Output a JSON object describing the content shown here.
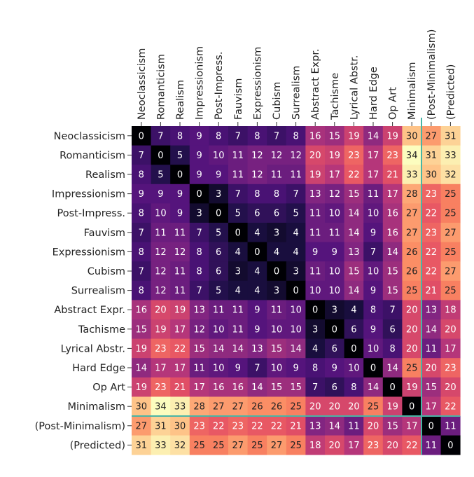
{
  "chart_data": {
    "type": "heatmap",
    "title": "",
    "xlabel": "",
    "ylabel": "",
    "categories": [
      "Neoclassicism",
      "Romanticism",
      "Realism",
      "Impressionism",
      "Post-Impress.",
      "Fauvism",
      "Expressionism",
      "Cubism",
      "Surrealism",
      "Abstract Expr.",
      "Tachisme",
      "Lyrical Abstr.",
      "Hard Edge",
      "Op Art",
      "Minimalism",
      "(Post-Minimalism)",
      "(Predicted)"
    ],
    "values": [
      [
        0,
        7,
        8,
        9,
        8,
        7,
        8,
        7,
        8,
        16,
        15,
        19,
        14,
        19,
        30,
        27,
        31
      ],
      [
        7,
        0,
        5,
        9,
        10,
        11,
        12,
        12,
        12,
        20,
        19,
        23,
        17,
        23,
        34,
        31,
        33
      ],
      [
        8,
        5,
        0,
        9,
        9,
        11,
        12,
        11,
        11,
        19,
        17,
        22,
        17,
        21,
        33,
        30,
        32
      ],
      [
        9,
        9,
        9,
        0,
        3,
        7,
        8,
        8,
        7,
        13,
        12,
        15,
        11,
        17,
        28,
        23,
        25
      ],
      [
        8,
        10,
        9,
        3,
        0,
        5,
        6,
        6,
        5,
        11,
        10,
        14,
        10,
        16,
        27,
        22,
        25
      ],
      [
        7,
        11,
        11,
        7,
        5,
        0,
        4,
        3,
        4,
        11,
        11,
        14,
        9,
        16,
        27,
        23,
        27
      ],
      [
        8,
        12,
        12,
        8,
        6,
        4,
        0,
        4,
        4,
        9,
        9,
        13,
        7,
        14,
        26,
        22,
        25
      ],
      [
        7,
        12,
        11,
        8,
        6,
        3,
        4,
        0,
        3,
        11,
        10,
        15,
        10,
        15,
        26,
        22,
        27
      ],
      [
        8,
        12,
        11,
        7,
        5,
        4,
        4,
        3,
        0,
        10,
        10,
        14,
        9,
        15,
        25,
        21,
        25
      ],
      [
        16,
        20,
        19,
        13,
        11,
        11,
        9,
        11,
        10,
        0,
        3,
        4,
        8,
        7,
        20,
        13,
        18
      ],
      [
        15,
        19,
        17,
        12,
        10,
        11,
        9,
        10,
        10,
        3,
        0,
        6,
        9,
        6,
        20,
        14,
        20
      ],
      [
        19,
        23,
        22,
        15,
        14,
        14,
        13,
        15,
        14,
        4,
        6,
        0,
        10,
        8,
        20,
        11,
        17
      ],
      [
        14,
        17,
        17,
        11,
        10,
        9,
        7,
        10,
        9,
        8,
        9,
        10,
        0,
        14,
        25,
        20,
        23
      ],
      [
        19,
        23,
        21,
        17,
        16,
        16,
        14,
        15,
        15,
        7,
        6,
        8,
        14,
        0,
        19,
        15,
        20
      ],
      [
        30,
        34,
        33,
        28,
        27,
        27,
        26,
        26,
        25,
        20,
        20,
        20,
        25,
        19,
        0,
        17,
        22
      ],
      [
        27,
        31,
        30,
        23,
        22,
        23,
        22,
        22,
        21,
        13,
        14,
        11,
        20,
        15,
        17,
        0,
        11
      ],
      [
        31,
        33,
        32,
        25,
        25,
        27,
        25,
        27,
        25,
        18,
        20,
        17,
        23,
        20,
        22,
        11,
        0
      ]
    ],
    "color_scale": "magma",
    "color_range": [
      0,
      34
    ],
    "highlight_color": "#48b5a6",
    "grid": false,
    "legend": "none"
  }
}
